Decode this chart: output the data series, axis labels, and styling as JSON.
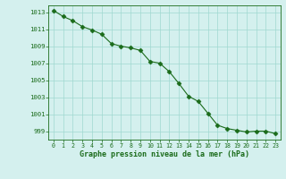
{
  "x": [
    0,
    1,
    2,
    3,
    4,
    5,
    6,
    7,
    8,
    9,
    10,
    11,
    12,
    13,
    14,
    15,
    16,
    17,
    18,
    19,
    20,
    21,
    22,
    23
  ],
  "y": [
    1013.2,
    1012.5,
    1012.0,
    1011.3,
    1010.9,
    1010.4,
    1009.3,
    1009.0,
    1008.8,
    1008.5,
    1007.2,
    1007.0,
    1006.0,
    1004.6,
    1003.1,
    1002.5,
    1001.1,
    999.7,
    999.3,
    999.1,
    998.9,
    999.0,
    999.0,
    998.7
  ],
  "line_color": "#1a6b1a",
  "marker": "D",
  "marker_size": 2.5,
  "bg_color": "#d4f0ee",
  "grid_color": "#a0d8d0",
  "xlabel": "Graphe pression niveau de la mer (hPa)",
  "xlabel_color": "#1a6b1a",
  "tick_color": "#1a6b1a",
  "ylim": [
    998.0,
    1013.8
  ],
  "xlim": [
    -0.5,
    23.5
  ],
  "yticks": [
    999,
    1001,
    1003,
    1005,
    1007,
    1009,
    1011,
    1013
  ],
  "ytick_labels": [
    "999",
    "1001",
    "1003",
    "1005",
    "1007",
    "1009",
    "1011",
    "1013"
  ],
  "xticks": [
    0,
    1,
    2,
    3,
    4,
    5,
    6,
    7,
    8,
    9,
    10,
    11,
    12,
    13,
    14,
    15,
    16,
    17,
    18,
    19,
    20,
    21,
    22,
    23
  ]
}
